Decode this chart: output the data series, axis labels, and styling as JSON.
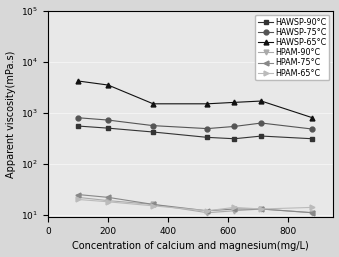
{
  "x": [
    100,
    200,
    350,
    530,
    620,
    710,
    880
  ],
  "series": [
    {
      "label": "HAWSP-90°C",
      "marker": "s",
      "color": "#333333",
      "linestyle": "-",
      "y": [
        550,
        500,
        420,
        330,
        310,
        350,
        310
      ]
    },
    {
      "label": "HAWSP-75°C",
      "marker": "o",
      "color": "#555555",
      "linestyle": "-",
      "y": [
        800,
        720,
        560,
        490,
        540,
        630,
        480
      ]
    },
    {
      "label": "HAWSP-65°C",
      "marker": "^",
      "color": "#111111",
      "linestyle": "-",
      "y": [
        4200,
        3500,
        1500,
        1500,
        1600,
        1700,
        800
      ]
    },
    {
      "label": "HPAM-90°C",
      "marker": "v",
      "color": "#aaaaaa",
      "linestyle": "-",
      "y": [
        22,
        19,
        16,
        11,
        12,
        13,
        11
      ]
    },
    {
      "label": "HPAM-75°C",
      "marker": "<",
      "color": "#888888",
      "linestyle": "-",
      "y": [
        25,
        22,
        16,
        12,
        13,
        13,
        11
      ]
    },
    {
      "label": "HPAM-65°C",
      "marker": ">",
      "color": "#bbbbbb",
      "linestyle": "-",
      "y": [
        20,
        18,
        15,
        12,
        14,
        13,
        14
      ]
    }
  ],
  "xlabel": "Concentration of calcium and magnesium(mg/L)",
  "ylabel": "Apparent viscosity(mPa.s)",
  "xlim": [
    0,
    950
  ],
  "ylim_log": [
    9,
    100000
  ],
  "xticks": [
    0,
    200,
    400,
    600,
    800
  ],
  "yticks": [
    10,
    100,
    1000,
    10000,
    100000
  ],
  "ytick_labels": [
    "10$^1$",
    "10$^2$",
    "10$^3$",
    "10$^4$",
    "10$^5$"
  ],
  "title": "",
  "legend_fontsize": 5.8,
  "axis_fontsize": 7.0,
  "tick_fontsize": 6.5,
  "bg_color": "#e8e8e8",
  "fig_bg": "#d8d8d8"
}
